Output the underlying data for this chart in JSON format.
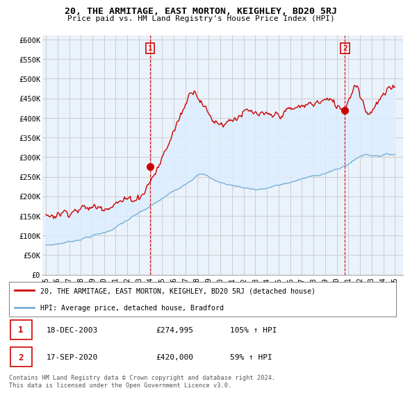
{
  "title": "20, THE ARMITAGE, EAST MORTON, KEIGHLEY, BD20 5RJ",
  "subtitle": "Price paid vs. HM Land Registry's House Price Index (HPI)",
  "ylabel_ticks": [
    "£0",
    "£50K",
    "£100K",
    "£150K",
    "£200K",
    "£250K",
    "£300K",
    "£350K",
    "£400K",
    "£450K",
    "£500K",
    "£550K",
    "£600K"
  ],
  "ytick_values": [
    0,
    50000,
    100000,
    150000,
    200000,
    250000,
    300000,
    350000,
    400000,
    450000,
    500000,
    550000,
    600000
  ],
  "ylim": [
    0,
    610000
  ],
  "xlim_start": 1994.7,
  "xlim_end": 2025.7,
  "x_ticks": [
    1995,
    1996,
    1997,
    1998,
    1999,
    2000,
    2001,
    2002,
    2003,
    2004,
    2005,
    2006,
    2007,
    2008,
    2009,
    2010,
    2011,
    2012,
    2013,
    2014,
    2015,
    2016,
    2017,
    2018,
    2019,
    2020,
    2021,
    2022,
    2023,
    2024,
    2025
  ],
  "x_tick_labels": [
    "95",
    "96",
    "97",
    "98",
    "99",
    "00",
    "01",
    "02",
    "03",
    "04",
    "05",
    "06",
    "07",
    "08",
    "09",
    "10",
    "11",
    "12",
    "13",
    "14",
    "15",
    "16",
    "17",
    "18",
    "19",
    "20",
    "21",
    "22",
    "23",
    "24",
    "25"
  ],
  "sale1_x": 2003.96,
  "sale1_y": 274995,
  "sale1_label": "1",
  "sale1_date": "18-DEC-2003",
  "sale1_price": "£274,995",
  "sale1_hpi": "105% ↑ HPI",
  "sale2_x": 2020.71,
  "sale2_y": 420000,
  "sale2_label": "2",
  "sale2_date": "17-SEP-2020",
  "sale2_price": "£420,000",
  "sale2_hpi": "59% ↑ HPI",
  "house_color": "#cc0000",
  "hpi_color": "#7ab0d4",
  "fill_color": "#ddeeff",
  "legend_house_label": "20, THE ARMITAGE, EAST MORTON, KEIGHLEY, BD20 5RJ (detached house)",
  "legend_hpi_label": "HPI: Average price, detached house, Bradford",
  "footer": "Contains HM Land Registry data © Crown copyright and database right 2024.\nThis data is licensed under the Open Government Licence v3.0.",
  "background_color": "#ffffff",
  "grid_color": "#cccccc",
  "plot_bg_color": "#eaf2fb"
}
